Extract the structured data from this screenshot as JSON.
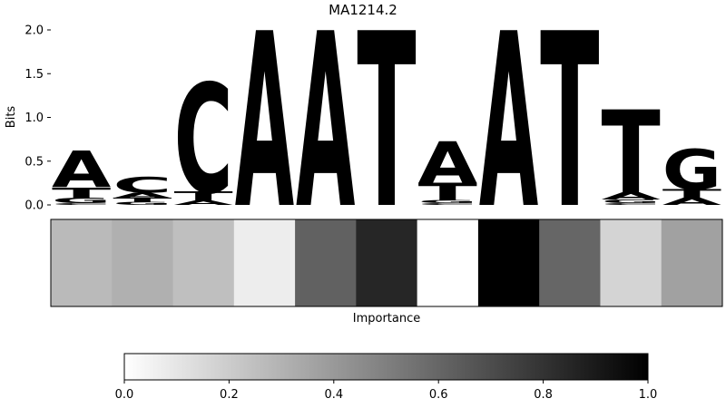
{
  "chart_data": [
    {
      "type": "sequence-logo",
      "title": "MA1214.2",
      "ylabel": "Bits",
      "ylim": [
        0,
        2.0
      ],
      "yticks": [
        "0.0",
        "0.5",
        "1.0",
        "1.5",
        "2.0"
      ],
      "letter_colors": {
        "A": "#4ca64c",
        "C": "#4c4cff",
        "G": "#ffbf4c",
        "T": "#ff4c4c"
      },
      "positions": [
        [
          {
            "base": "A",
            "bits": 0.42
          },
          {
            "base": "T",
            "bits": 0.12
          },
          {
            "base": "G",
            "bits": 0.06
          },
          {
            "base": "C",
            "bits": 0.02
          }
        ],
        [
          {
            "base": "C",
            "bits": 0.18
          },
          {
            "base": "A",
            "bits": 0.06
          },
          {
            "base": "T",
            "bits": 0.05
          },
          {
            "base": "G",
            "bits": 0.03
          }
        ],
        [
          {
            "base": "C",
            "bits": 1.25
          },
          {
            "base": "T",
            "bits": 0.1
          },
          {
            "base": "A",
            "bits": 0.05
          }
        ],
        [
          {
            "base": "A",
            "bits": 2.0
          }
        ],
        [
          {
            "base": "A",
            "bits": 2.0
          }
        ],
        [
          {
            "base": "T",
            "bits": 2.0
          }
        ],
        [
          {
            "base": "A",
            "bits": 0.48
          },
          {
            "base": "T",
            "bits": 0.2
          },
          {
            "base": "G",
            "bits": 0.03
          },
          {
            "base": "C",
            "bits": 0.02
          }
        ],
        [
          {
            "base": "A",
            "bits": 2.0
          }
        ],
        [
          {
            "base": "T",
            "bits": 2.0
          }
        ],
        [
          {
            "base": "T",
            "bits": 0.95
          },
          {
            "base": "A",
            "bits": 0.08
          },
          {
            "base": "G",
            "bits": 0.04
          },
          {
            "base": "C",
            "bits": 0.02
          }
        ],
        [
          {
            "base": "G",
            "bits": 0.46
          },
          {
            "base": "T",
            "bits": 0.1
          },
          {
            "base": "A",
            "bits": 0.08
          }
        ]
      ]
    },
    {
      "type": "heatmap",
      "xlabel": "Importance",
      "values": [
        0.27,
        0.31,
        0.25,
        0.07,
        0.62,
        0.85,
        0.0,
        1.0,
        0.6,
        0.17,
        0.37
      ],
      "colormap": [
        "#ffffff",
        "#000000"
      ],
      "colorbar": {
        "range": [
          0.0,
          1.0
        ],
        "ticks": [
          "0.0",
          "0.2",
          "0.4",
          "0.6",
          "0.8",
          "1.0"
        ]
      }
    }
  ]
}
